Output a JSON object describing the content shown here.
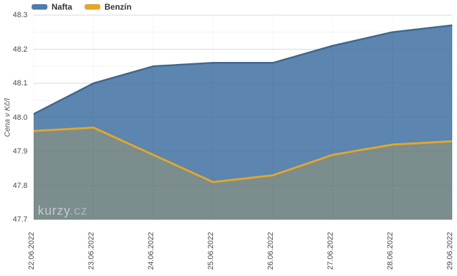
{
  "chart_data": {
    "type": "area",
    "title": "",
    "ylabel": "Cena v Kč/l",
    "xlabel": "",
    "ylim": [
      47.7,
      48.3
    ],
    "y_ticks": [
      48.3,
      48.2,
      48.1,
      48.0,
      47.9,
      47.8,
      47.7
    ],
    "minor_gridlines": true,
    "grid": true,
    "legend_position": "top-left",
    "categories": [
      "22.06.2022",
      "23.06.2022",
      "24.06.2022",
      "25.06.2022",
      "26.06.2022",
      "27.06.2022",
      "28.06.2022",
      "29.06.2022"
    ],
    "series": [
      {
        "name": "Nafta",
        "values": [
          48.01,
          48.1,
          48.15,
          48.16,
          48.16,
          48.21,
          48.25,
          48.27
        ],
        "color": "#4f7cab",
        "line_color": "#3e688f",
        "fill_color": "#5c85af"
      },
      {
        "name": "Benzín",
        "values": [
          47.96,
          47.97,
          47.89,
          47.81,
          47.83,
          47.89,
          47.92,
          47.93
        ],
        "color": "#e2a82a",
        "line_color": "#e1a72b",
        "fill_color": "#7b8d8d"
      }
    ]
  },
  "watermark": {
    "text_main": "kurzy",
    "text_suffix": ".cz"
  }
}
